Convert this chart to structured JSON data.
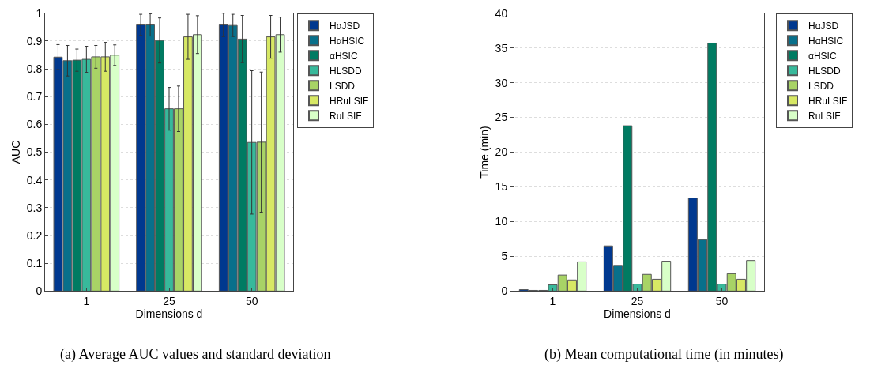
{
  "chart_data": [
    {
      "type": "bar",
      "xlabel": "Dimensions d",
      "ylabel": "AUC",
      "categories": [
        "1",
        "25",
        "50"
      ],
      "ylim": [
        0,
        1
      ],
      "yticks": [
        0,
        0.1,
        0.2,
        0.3,
        0.4,
        0.5,
        0.6,
        0.7,
        0.8,
        0.9,
        1
      ],
      "grid": "y",
      "legend": "right",
      "annotations": [
        "(a) Average AUC values and standard deviation"
      ],
      "series": [
        {
          "name": "HαJSD",
          "color": "#00388f",
          "values": [
            0.842,
            0.958,
            0.958
          ],
          "errors": [
            0.045,
            0.038,
            0.042
          ]
        },
        {
          "name": "HαHSIC",
          "color": "#08708b",
          "values": [
            0.829,
            0.958,
            0.956
          ],
          "errors": [
            0.055,
            0.04,
            0.04
          ]
        },
        {
          "name": "αHSIC",
          "color": "#007b62",
          "values": [
            0.831,
            0.902,
            0.907
          ],
          "errors": [
            0.04,
            0.081,
            0.085
          ]
        },
        {
          "name": "HLSDD",
          "color": "#38b99b",
          "values": [
            0.834,
            0.656,
            0.535
          ],
          "errors": [
            0.047,
            0.077,
            0.258
          ]
        },
        {
          "name": "LSDD",
          "color": "#a8d366",
          "values": [
            0.843,
            0.656,
            0.536
          ],
          "errors": [
            0.041,
            0.082,
            0.252
          ]
        },
        {
          "name": "HRuLSIF",
          "color": "#d7e864",
          "values": [
            0.843,
            0.915,
            0.915
          ],
          "errors": [
            0.052,
            0.081,
            0.077
          ]
        },
        {
          "name": "RuLSIF",
          "color": "#d8ffc8",
          "values": [
            0.849,
            0.923,
            0.923
          ],
          "errors": [
            0.037,
            0.068,
            0.063
          ]
        }
      ]
    },
    {
      "type": "bar",
      "xlabel": "Dimensions d",
      "ylabel": "Time (min)",
      "categories": [
        "1",
        "25",
        "50"
      ],
      "ylim": [
        0,
        40
      ],
      "yticks": [
        0,
        5,
        10,
        15,
        20,
        25,
        30,
        35,
        40
      ],
      "grid": "y",
      "legend": "right",
      "annotations": [
        "(b) Mean computational time (in minutes)"
      ],
      "series": [
        {
          "name": "HαJSD",
          "color": "#00388f",
          "values": [
            0.2,
            6.5,
            13.4
          ]
        },
        {
          "name": "HαHSIC",
          "color": "#08708b",
          "values": [
            0.1,
            3.7,
            7.4
          ]
        },
        {
          "name": "αHSIC",
          "color": "#007b62",
          "values": [
            0.1,
            23.8,
            35.7
          ]
        },
        {
          "name": "HLSDD",
          "color": "#38b99b",
          "values": [
            0.9,
            1.0,
            1.0
          ]
        },
        {
          "name": "LSDD",
          "color": "#a8d366",
          "values": [
            2.3,
            2.4,
            2.5
          ]
        },
        {
          "name": "HRuLSIF",
          "color": "#d7e864",
          "values": [
            1.6,
            1.7,
            1.7
          ]
        },
        {
          "name": "RuLSIF",
          "color": "#d8ffc8",
          "values": [
            4.2,
            4.3,
            4.4
          ]
        }
      ]
    }
  ]
}
